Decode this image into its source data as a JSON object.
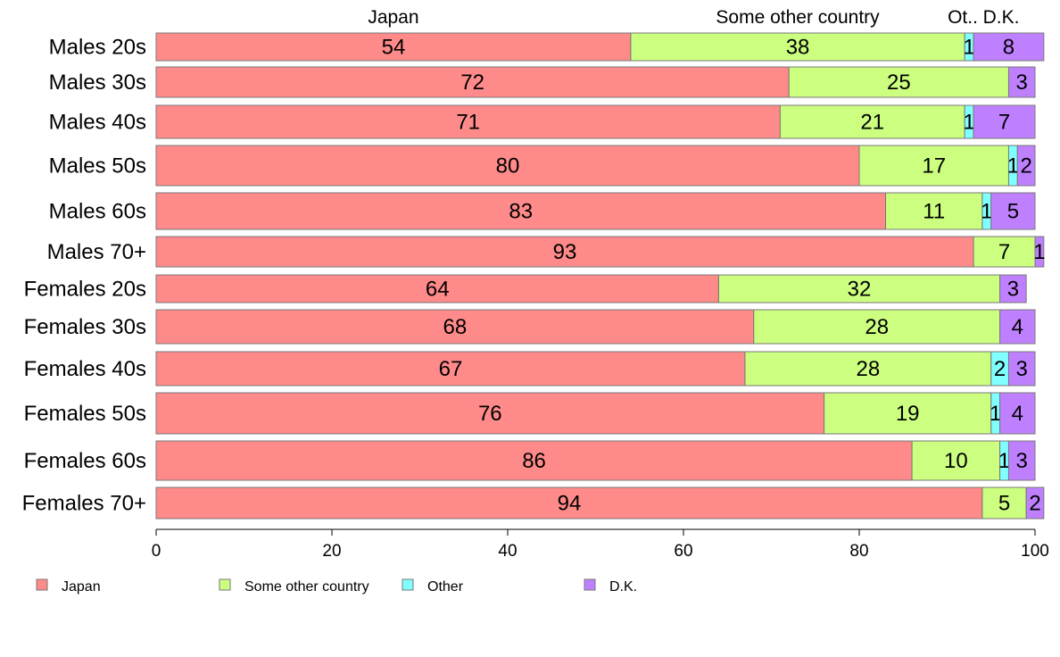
{
  "chart_data": {
    "type": "bar",
    "orientation": "horizontal",
    "stacked": true,
    "categories": [
      "Males 20s",
      "Males 30s",
      "Males 40s",
      "Males 50s",
      "Males 60s",
      "Males 70+",
      "Females 20s",
      "Females 30s",
      "Females 40s",
      "Females 50s",
      "Females 60s",
      "Females 70+"
    ],
    "series": [
      {
        "name": "Japan",
        "color": "#ff8a8a",
        "values": [
          54,
          72,
          71,
          80,
          83,
          93,
          64,
          68,
          67,
          76,
          86,
          94
        ]
      },
      {
        "name": "Some other country",
        "color": "#ccff80",
        "values": [
          38,
          25,
          21,
          17,
          11,
          7,
          32,
          28,
          28,
          19,
          10,
          5
        ]
      },
      {
        "name": "Other",
        "color": "#80ffff",
        "values": [
          1,
          0,
          1,
          1,
          1,
          0,
          0,
          0,
          2,
          1,
          1,
          0
        ]
      },
      {
        "name": "D.K.",
        "color": "#bf80ff",
        "values": [
          8,
          3,
          7,
          2,
          5,
          1,
          3,
          4,
          3,
          4,
          3,
          2
        ]
      }
    ],
    "top_labels": [
      "Japan",
      "Some other country",
      "Ot..",
      "D.K."
    ],
    "xlim": [
      0,
      100
    ],
    "xticks": [
      "0",
      "20",
      "40",
      "60",
      "80",
      "100"
    ],
    "legend": {
      "placement": "bottom-left",
      "items": [
        "Japan",
        "Some other country",
        "Other",
        "D.K."
      ]
    },
    "grid": false
  }
}
